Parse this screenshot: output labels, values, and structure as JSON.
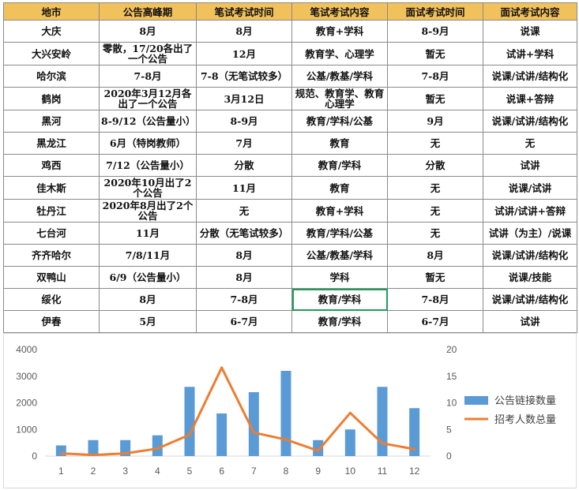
{
  "table": {
    "headers": [
      "地市",
      "公告高峰期",
      "笔试考试时间",
      "笔试考试内容",
      "面试考试时间",
      "面试考试内容"
    ],
    "rows": [
      [
        "大庆",
        "8月",
        "8月",
        "教育+学科",
        "8-9月",
        "说课"
      ],
      [
        "大兴安岭",
        "零散，17/20各出了一个公告",
        "12月",
        "教育学、心理学",
        "暂无",
        "试讲+学科"
      ],
      [
        "哈尔滨",
        "7-8月",
        "7-8（无笔试较多）",
        "公基/教基/学科",
        "7-8月",
        "说课/试讲/结构化"
      ],
      [
        "鹤岗",
        "2020年3月12月各出了一个公告",
        "3月12日",
        "规范、教育学、教育心理学",
        "暂无",
        "说课+答辩"
      ],
      [
        "黑河",
        "8-9/12（公告量小）",
        "8-9月",
        "教育/学科/公基",
        "9月",
        "说课/试讲/结构化"
      ],
      [
        "黑龙江",
        "6月（特岗教师）",
        "7月",
        "教育",
        "无",
        "无"
      ],
      [
        "鸡西",
        "7/12（公告量小）",
        "分散",
        "教育/学科",
        "分散",
        "试讲"
      ],
      [
        "佳木斯",
        "2020年10月出了2个公告",
        "11月",
        "教育",
        "无",
        "说课/试讲"
      ],
      [
        "牡丹江",
        "2020年8月出了2个公告",
        "无",
        "教育+学科",
        "无",
        "试讲/试讲+答辩"
      ],
      [
        "七台河",
        "11月",
        "分散（无笔试较多）",
        "教育/学科/公基",
        "无",
        "试讲（为主）/说课"
      ],
      [
        "齐齐哈尔",
        "7/8/11月",
        "8月",
        "公基/教基/学科",
        "8月",
        "说课/试讲/结构化"
      ],
      [
        "双鸭山",
        "6/9（公告量小）",
        "8月",
        "学科",
        "暂无",
        "说课/技能"
      ],
      [
        "绥化",
        "8月",
        "7-8月",
        "教育/学科",
        "7-8月",
        "说课/试讲/结构化"
      ],
      [
        "伊春",
        "5月",
        "6-7月",
        "教育/学科",
        "6-7月",
        "试讲"
      ]
    ],
    "selected_cell": {
      "row": 12,
      "col": 3
    }
  },
  "chart_data": {
    "type": "bar",
    "categories": [
      "1",
      "2",
      "3",
      "4",
      "5",
      "6",
      "7",
      "8",
      "9",
      "10",
      "11",
      "12"
    ],
    "series": [
      {
        "name": "公告链接数量",
        "type": "bar",
        "axis": "left",
        "color": "#5b9bd5",
        "values": [
          400,
          600,
          600,
          780,
          2600,
          1600,
          2400,
          3200,
          600,
          1000,
          2600,
          1800
        ]
      },
      {
        "name": "招考人数总量",
        "type": "line",
        "axis": "right",
        "color": "#ed7d31",
        "values": [
          0.5,
          0.2,
          0.5,
          1.4,
          4.0,
          16.6,
          4.4,
          3.1,
          1.0,
          8.1,
          2.4,
          1.3
        ]
      }
    ],
    "y_left": {
      "ticks": [
        "0",
        "1000",
        "2000",
        "3000",
        "4000"
      ],
      "min": 0,
      "max": 4000
    },
    "y_right": {
      "ticks": [
        "0",
        "5",
        "10",
        "15",
        "20"
      ],
      "min": 0,
      "max": 20
    },
    "legend_position": "right",
    "grid": false
  }
}
